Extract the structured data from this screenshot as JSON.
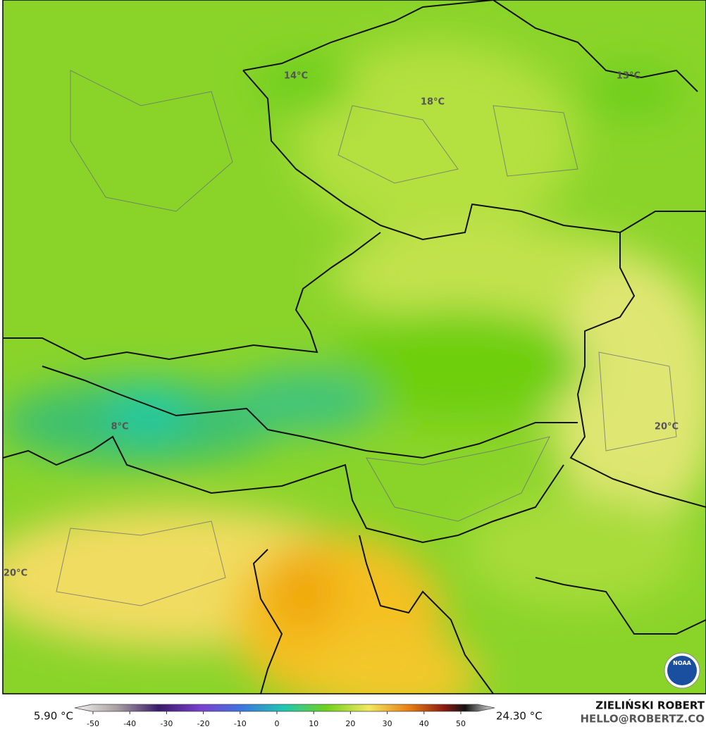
{
  "map_labels": [
    "14°C",
    "18°C",
    "13°C",
    "8°C",
    "20°C",
    "20°C"
  ],
  "colorbar": {
    "min_label": "5.90 °C",
    "max_label": "24.30 °C",
    "ticks": [
      -50,
      -40,
      -30,
      -20,
      -10,
      0,
      10,
      20,
      30,
      40,
      50
    ]
  },
  "credits": {
    "author": "ZIELIŃSKI ROBERT",
    "email": "HELLO@ROBERTZ.CO"
  },
  "logo": "NOAA"
}
